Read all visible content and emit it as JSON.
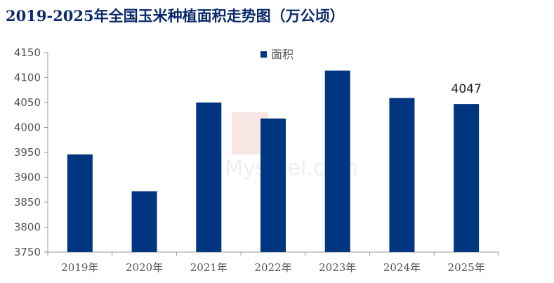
{
  "title": "2019-2025年全国玉米种植面积走势图（万公顷）",
  "colors": {
    "bar": "#003580",
    "title": "#0b2a6b",
    "axis": "#999999",
    "text": "#555555"
  },
  "watermark_text": "Mysteel.com",
  "chart_data": {
    "type": "bar",
    "title": "2019-2025年全国玉米种植面积走势图（万公顷）",
    "xlabel": "",
    "ylabel": "",
    "categories": [
      "2019年",
      "2020年",
      "2021年",
      "2022年",
      "2023年",
      "2024年",
      "2025年"
    ],
    "series": [
      {
        "name": "面积",
        "values": [
          3946,
          3872,
          4050,
          4018,
          4114,
          4059,
          4047
        ]
      }
    ],
    "ylim": [
      3750,
      4150
    ],
    "yticks": [
      3750,
      3800,
      3850,
      3900,
      3950,
      4000,
      4050,
      4100,
      4150
    ],
    "data_labels": [
      {
        "category": "2025年",
        "text": "4047"
      }
    ],
    "grid": false,
    "legend_position": "top-center"
  }
}
